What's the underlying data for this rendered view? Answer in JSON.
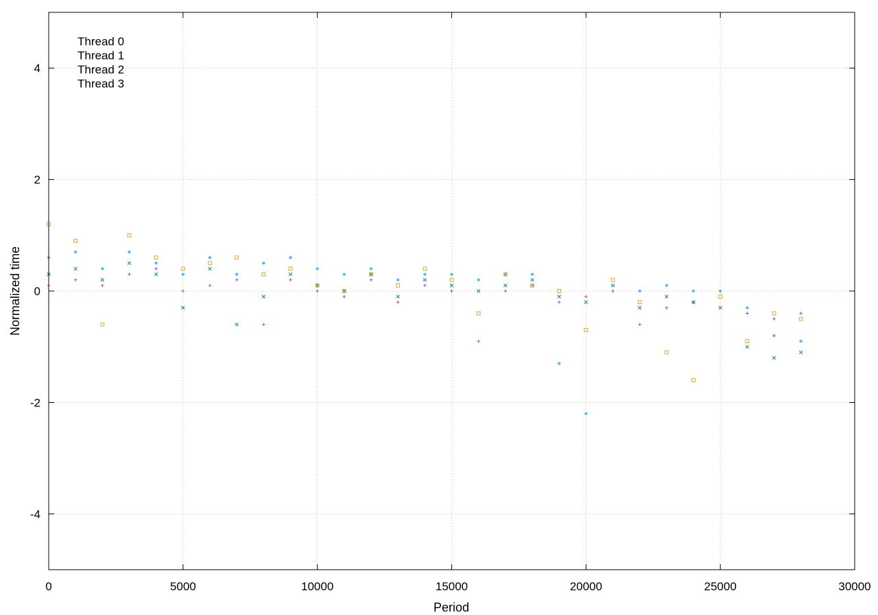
{
  "chart_data": {
    "type": "scatter",
    "title": "",
    "xlabel": "Period",
    "ylabel": "Normalized time",
    "xlim": [
      0,
      30000
    ],
    "ylim": [
      -5,
      5
    ],
    "xticks": [
      0,
      5000,
      10000,
      15000,
      20000,
      25000,
      30000
    ],
    "xtick_labels": [
      "0",
      "5000",
      "10000",
      "15000",
      "20000",
      "25000",
      "30000"
    ],
    "yticks": [
      -4,
      -2,
      0,
      2,
      4
    ],
    "ytick_labels": [
      "-4",
      "-2",
      "0",
      "2",
      "4"
    ],
    "grid": true,
    "legend_position": "top-left",
    "series": [
      {
        "name": "Thread 0",
        "color": "#9955cc",
        "marker": "plus",
        "x": [
          0,
          1000,
          2000,
          3000,
          4000,
          5000,
          6000,
          7000,
          8000,
          9000,
          10000,
          11000,
          12000,
          13000,
          14000,
          15000,
          16000,
          17000,
          18000,
          19000,
          20000,
          21000,
          22000,
          23000,
          24000,
          25000,
          26000,
          27000,
          28000
        ],
        "y": [
          0.1,
          0.2,
          0.1,
          0.3,
          0.4,
          0.0,
          0.1,
          0.2,
          -0.6,
          0.2,
          0.0,
          -0.1,
          0.2,
          -0.2,
          0.1,
          0.0,
          -0.9,
          0.0,
          0.1,
          -0.2,
          -0.1,
          0.0,
          -0.6,
          -0.3,
          -0.2,
          0.0,
          -0.4,
          -0.5,
          -0.4
        ]
      },
      {
        "name": "Thread 1",
        "color": "#1a8a6a",
        "marker": "cross",
        "x": [
          0,
          1000,
          2000,
          3000,
          4000,
          5000,
          6000,
          7000,
          8000,
          9000,
          10000,
          11000,
          12000,
          13000,
          14000,
          15000,
          16000,
          17000,
          18000,
          19000,
          20000,
          21000,
          22000,
          23000,
          24000,
          25000,
          26000,
          27000,
          28000
        ],
        "y": [
          0.3,
          0.4,
          0.2,
          0.5,
          0.3,
          -0.3,
          0.4,
          -0.6,
          -0.1,
          0.3,
          0.1,
          0.0,
          0.3,
          -0.1,
          0.2,
          0.1,
          0.0,
          0.1,
          0.2,
          -0.1,
          -0.2,
          0.1,
          -0.3,
          -0.1,
          -0.2,
          -0.3,
          -1.0,
          -1.2,
          -1.1
        ]
      },
      {
        "name": "Thread 2",
        "color": "#55b4e9",
        "marker": "asterisk",
        "x": [
          0,
          1000,
          2000,
          3000,
          4000,
          5000,
          6000,
          7000,
          8000,
          9000,
          10000,
          11000,
          12000,
          13000,
          14000,
          15000,
          16000,
          17000,
          18000,
          19000,
          20000,
          21000,
          22000,
          23000,
          24000,
          25000,
          26000,
          27000,
          28000
        ],
        "y": [
          0.6,
          0.7,
          0.4,
          0.7,
          0.5,
          0.3,
          0.6,
          0.3,
          0.5,
          0.6,
          0.4,
          0.3,
          0.4,
          0.2,
          0.3,
          0.3,
          0.2,
          0.3,
          0.3,
          -1.3,
          -2.2,
          0.1,
          0.0,
          0.1,
          0.0,
          0.0,
          -0.3,
          -0.8,
          -0.9
        ]
      },
      {
        "name": "Thread 3",
        "color": "#d8a834",
        "marker": "square",
        "x": [
          0,
          1000,
          2000,
          3000,
          4000,
          5000,
          6000,
          7000,
          8000,
          9000,
          10000,
          11000,
          12000,
          13000,
          14000,
          15000,
          16000,
          17000,
          18000,
          19000,
          20000,
          21000,
          22000,
          23000,
          24000,
          25000,
          26000,
          27000,
          28000
        ],
        "y": [
          1.2,
          0.9,
          -0.6,
          1.0,
          0.6,
          0.4,
          0.5,
          0.6,
          0.3,
          0.4,
          0.1,
          0.0,
          0.3,
          0.1,
          0.4,
          0.2,
          -0.4,
          0.3,
          0.1,
          0.0,
          -0.7,
          0.2,
          -0.2,
          -1.1,
          -1.6,
          -0.1,
          -0.9,
          -0.4,
          -0.5
        ]
      }
    ]
  }
}
